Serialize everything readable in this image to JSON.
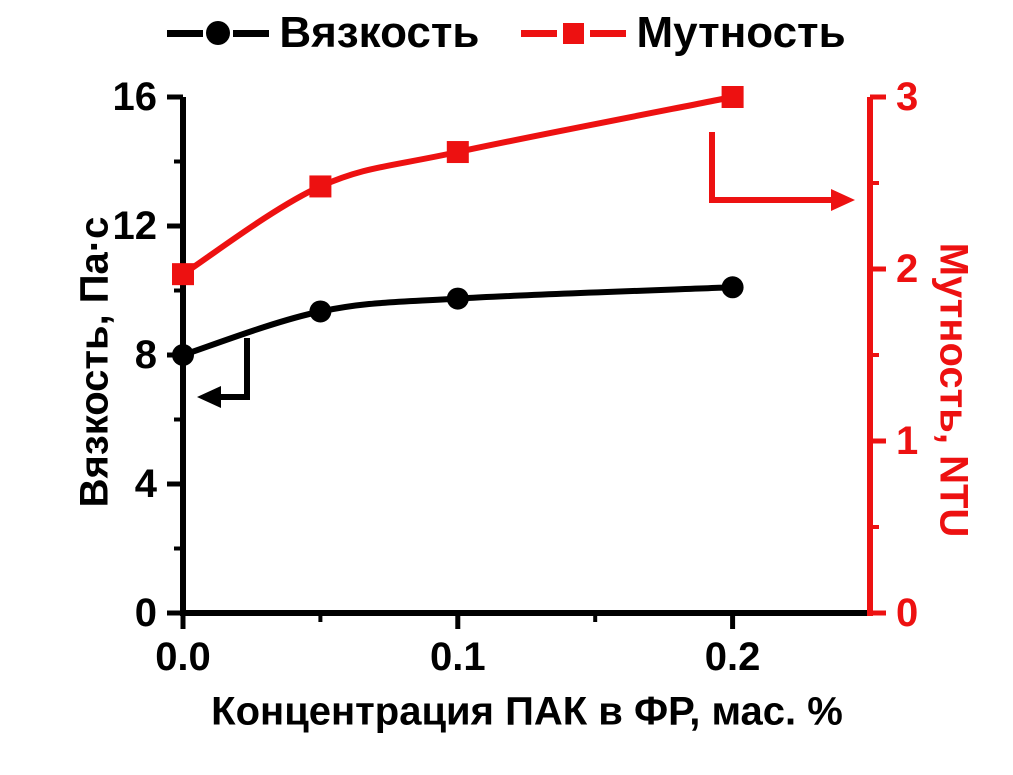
{
  "chart_data": {
    "type": "line",
    "title": "",
    "x": [
      0.0,
      0.05,
      0.1,
      0.2
    ],
    "series": [
      {
        "name": "Вязкость",
        "axis": "left",
        "color": "#000000",
        "marker": "circle",
        "values": [
          8.0,
          9.35,
          9.75,
          10.1
        ]
      },
      {
        "name": "Мутность",
        "axis": "right",
        "color": "#ed1111",
        "marker": "square",
        "values": [
          1.97,
          2.48,
          2.68,
          3.0
        ]
      }
    ],
    "x_axis": {
      "label": "Концентрация ПАК в ФР, мас. %",
      "range": [
        0,
        0.25
      ],
      "major_ticks": [
        0.0,
        0.1,
        0.2
      ],
      "minor_step": 0.05,
      "tick_decimals": 1
    },
    "left_axis": {
      "label": "Вязкость, Па·с",
      "range": [
        0,
        16
      ],
      "major_ticks": [
        0,
        4,
        8,
        12,
        16
      ],
      "minor_step": 2,
      "tick_decimals": 0,
      "color": "#000000"
    },
    "right_axis": {
      "label": "Мутность, NTU",
      "range": [
        0,
        3
      ],
      "major_ticks": [
        0,
        1,
        2,
        3
      ],
      "minor_step": 0.5,
      "tick_decimals": 0,
      "color": "#ed1111"
    },
    "legend": {
      "position": "top",
      "items": [
        "Вязкость",
        "Мутность"
      ]
    },
    "annotations": [
      {
        "type": "elbow-arrow",
        "series": "Вязкость",
        "points_to": "left-axis"
      },
      {
        "type": "elbow-arrow",
        "series": "Мутность",
        "points_to": "right-axis"
      }
    ],
    "grid": false,
    "background": "#ffffff"
  }
}
